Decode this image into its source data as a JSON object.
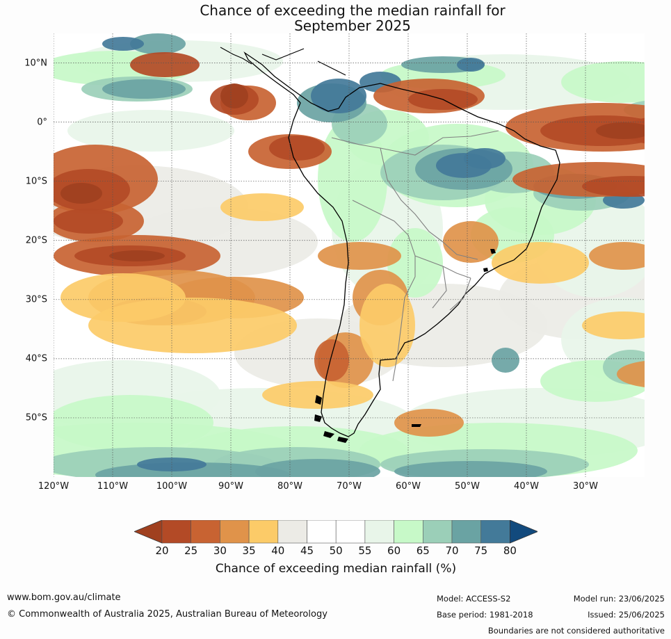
{
  "title": {
    "line1": "Chance of exceeding the median rainfall for",
    "line2": "September 2025"
  },
  "map": {
    "lat_labels": [
      "10°N",
      "0°",
      "10°S",
      "20°S",
      "30°S",
      "40°S",
      "50°S"
    ],
    "lon_labels": [
      "120°W",
      "110°W",
      "100°W",
      "90°W",
      "80°W",
      "70°W",
      "60°W",
      "50°W",
      "40°W",
      "30°W"
    ],
    "lat_values": [
      10,
      0,
      -10,
      -20,
      -30,
      -40,
      -50
    ],
    "lon_values": [
      -120,
      -110,
      -100,
      -90,
      -80,
      -70,
      -60,
      -50,
      -40,
      -30
    ],
    "extent": {
      "lon_min": -120,
      "lon_max": -20,
      "lat_min": -60,
      "lat_max": 15
    }
  },
  "colorbar": {
    "ticks": [
      "20",
      "25",
      "30",
      "35",
      "40",
      "45",
      "50",
      "55",
      "60",
      "65",
      "70",
      "75",
      "80"
    ],
    "colors": [
      "#a0401f",
      "#b34a26",
      "#c86332",
      "#e0934a",
      "#fccb68",
      "#ecebe6",
      "#ffffff",
      "#ffffff",
      "#e8f5e9",
      "#c7f9c8",
      "#9bcfb8",
      "#6aa3a3",
      "#437a99",
      "#124a7d"
    ],
    "label": "Chance of exceeding median rainfall (%)"
  },
  "footer": {
    "url": "www.bom.gov.au/climate",
    "copyright": "© Commonwealth of Australia 2025, Australian Bureau of Meteorology",
    "model": "Model: ACCESS-S2",
    "base_period": "Base period: 1981-2018",
    "model_run": "Model run: 23/06/2025",
    "issued": "Issued: 25/06/2025",
    "disclaimer": "Boundaries are not considered authoritative"
  }
}
